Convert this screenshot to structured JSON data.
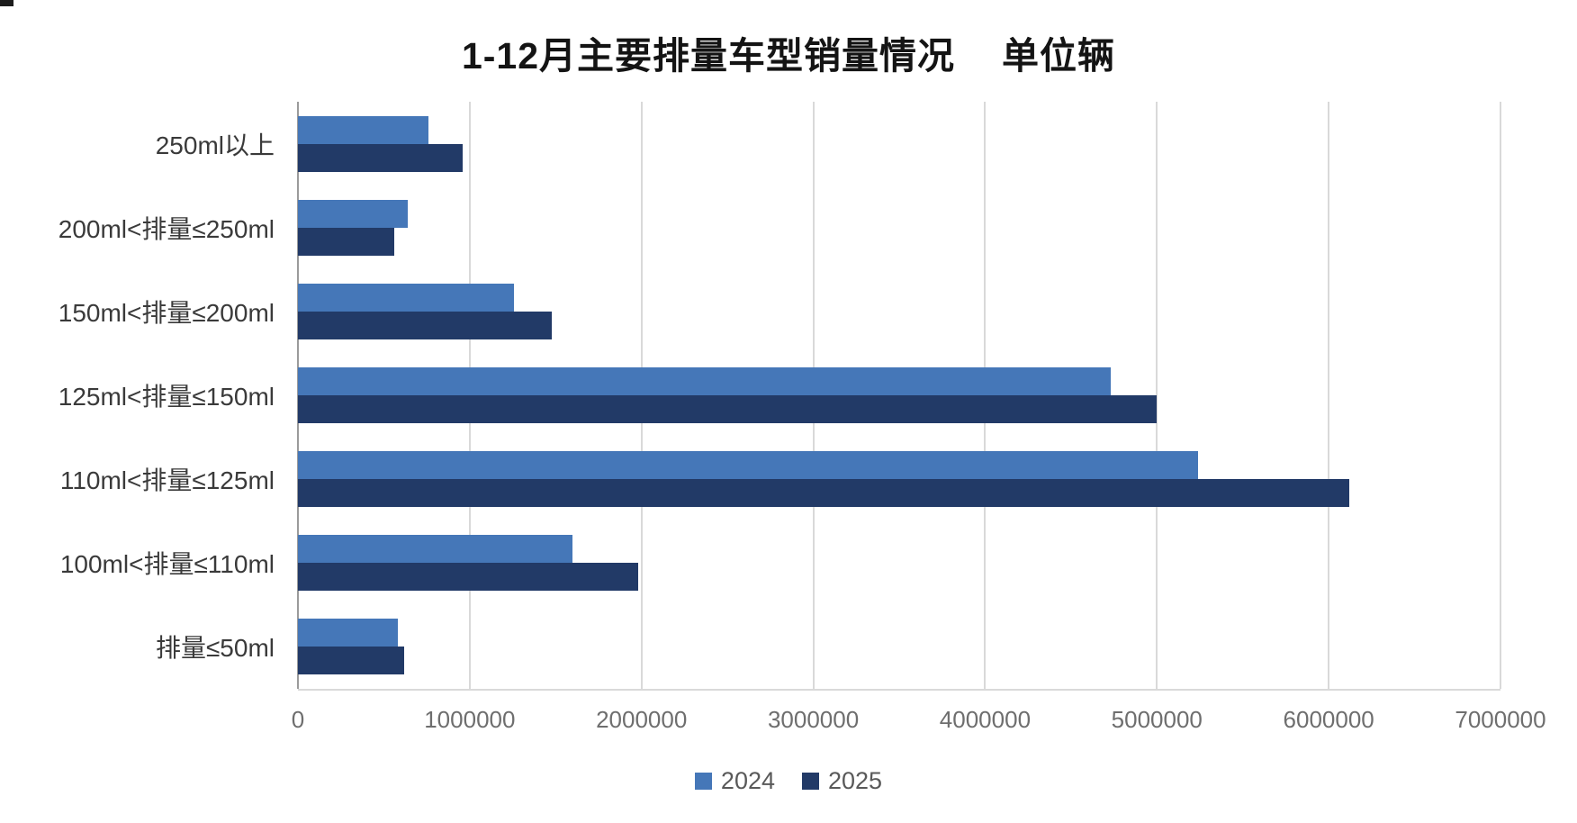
{
  "title": {
    "main": "1-12月主要排量车型销量情况",
    "unit": "单位辆"
  },
  "colors": {
    "series_2024": "#4577b8",
    "series_2025": "#223a67",
    "gridline": "#d9d9d9",
    "axis_line": "#9b9b9b",
    "title_text": "#141414",
    "label_text": "#3a3a3a",
    "tick_text": "#6e6e6e",
    "legend_text": "#595959"
  },
  "chart_data": {
    "type": "bar",
    "orientation": "horizontal",
    "title": "1-12月主要排量车型销量情况 单位辆",
    "categories": [
      "250ml以上",
      "200ml<排量≤250ml",
      "150ml<排量≤200ml",
      "125ml<排量≤150ml",
      "110ml<排量≤125ml",
      "100ml<排量≤110ml",
      "排量≤50ml"
    ],
    "series": [
      {
        "name": "2024",
        "color": "#4577b8",
        "values": [
          760000,
          640000,
          1260000,
          4730000,
          5240000,
          1600000,
          580000
        ]
      },
      {
        "name": "2025",
        "color": "#223a67",
        "values": [
          960000,
          560000,
          1480000,
          5000000,
          6120000,
          1980000,
          620000
        ]
      }
    ],
    "x_axis": {
      "min": 0,
      "max": 7000000,
      "tick_interval": 1000000,
      "tick_labels": [
        "0",
        "1000000",
        "2000000",
        "3000000",
        "4000000",
        "5000000",
        "6000000",
        "7000000"
      ]
    },
    "grid": "vertical",
    "legend": {
      "position": "bottom",
      "entries": [
        "2024",
        "2025"
      ]
    }
  }
}
